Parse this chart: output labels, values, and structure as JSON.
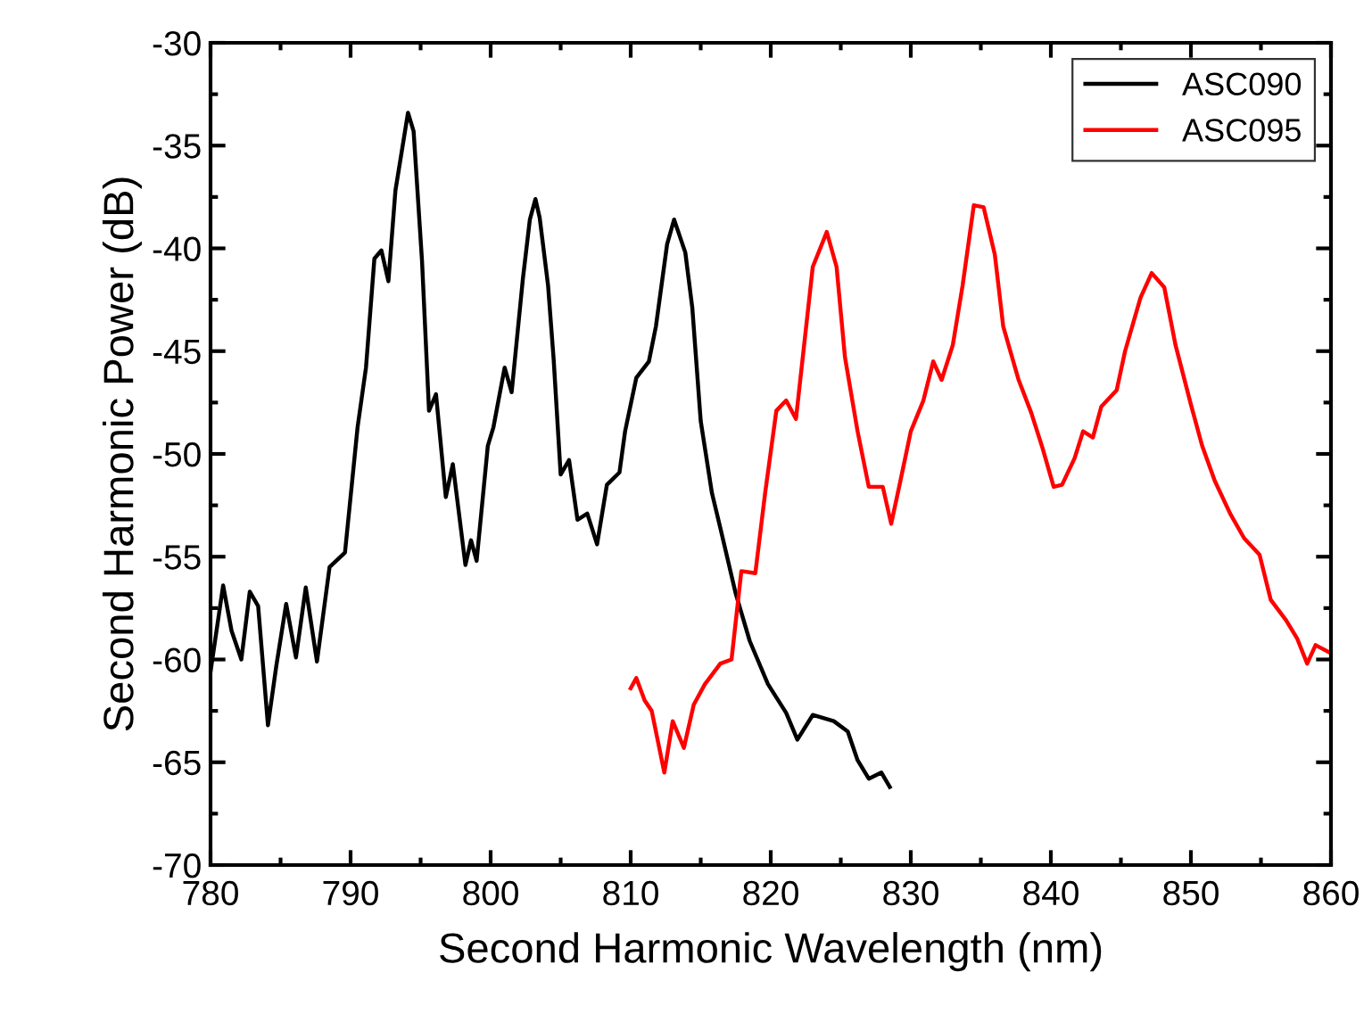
{
  "chart_data": {
    "type": "line",
    "xlabel": "Second Harmonic Wavelength (nm)",
    "ylabel": "Second Harmonic Power (dB)",
    "xlim": [
      780,
      860
    ],
    "xticks": [
      780,
      790,
      800,
      810,
      820,
      830,
      840,
      850,
      860
    ],
    "ylim": [
      -70,
      -30
    ],
    "yticks": [
      -70,
      -65,
      -60,
      -55,
      -50,
      -45,
      -40,
      -35,
      -30
    ],
    "grid": false,
    "legend": "top right",
    "marker": "none",
    "line_style": "solid",
    "series": [
      {
        "name": "ASC090",
        "color": "#000000",
        "x": [
          780,
          780.9,
          781.5,
          782.2,
          782.8,
          783.4,
          784.1,
          784.7,
          785.4,
          786.1,
          786.8,
          787.6,
          788.5,
          789.6,
          790.5,
          791.1,
          791.7,
          792.2,
          792.7,
          793.2,
          794.1,
          794.5,
          795.1,
          795.6,
          796.1,
          796.8,
          797.3,
          798.2,
          798.6,
          799.0,
          799.8,
          800.2,
          801.0,
          801.5,
          802.3,
          802.8,
          803.2,
          803.5,
          804.1,
          804.5,
          805.0,
          805.6,
          806.2,
          806.9,
          807.6,
          808.3,
          809.2,
          809.6,
          810.4,
          811.3,
          811.8,
          812.6,
          813.1,
          813.9,
          814.4,
          815.0,
          815.8,
          816.4,
          817.5,
          818.5,
          819.8,
          821.1,
          821.9,
          823.0,
          824.5,
          825.5,
          826.2,
          827.0,
          827.9,
          828.5
        ],
        "values": [
          -60.6,
          -56.4,
          -58.6,
          -60.0,
          -56.7,
          -57.4,
          -63.2,
          -60.3,
          -57.3,
          -59.9,
          -56.5,
          -60.1,
          -55.5,
          -54.8,
          -48.7,
          -45.8,
          -40.5,
          -40.1,
          -41.6,
          -37.2,
          -33.4,
          -34.3,
          -40.6,
          -47.9,
          -47.1,
          -52.1,
          -50.5,
          -55.4,
          -54.2,
          -55.2,
          -49.6,
          -48.7,
          -45.8,
          -47.0,
          -41.5,
          -38.6,
          -37.6,
          -38.5,
          -41.8,
          -45.4,
          -51.0,
          -50.3,
          -53.2,
          -52.9,
          -54.4,
          -51.5,
          -50.9,
          -48.9,
          -46.3,
          -45.5,
          -43.8,
          -39.8,
          -38.6,
          -40.2,
          -42.9,
          -48.4,
          -51.9,
          -53.6,
          -56.8,
          -59.1,
          -61.2,
          -62.6,
          -63.9,
          -62.7,
          -63.0,
          -63.5,
          -64.9,
          -65.8,
          -65.5,
          -66.2
        ]
      },
      {
        "name": "ASC095",
        "color": "#ff0000",
        "x": [
          810.0,
          810.4,
          811.0,
          811.5,
          812.4,
          813.0,
          813.8,
          814.5,
          815.3,
          816.4,
          817.2,
          817.9,
          818.9,
          819.6,
          820.4,
          821.1,
          821.8,
          823.0,
          824.0,
          824.7,
          825.3,
          826.2,
          827.0,
          828.0,
          828.6,
          829.2,
          830.0,
          830.9,
          831.6,
          832.2,
          833.0,
          833.7,
          834.5,
          835.2,
          836.0,
          836.6,
          837.7,
          838.6,
          839.4,
          840.2,
          840.8,
          841.7,
          842.3,
          843.0,
          843.6,
          844.7,
          845.3,
          846.4,
          847.2,
          848.1,
          848.9,
          850.0,
          850.8,
          851.7,
          852.8,
          853.8,
          854.9,
          855.7,
          856.8,
          857.6,
          858.3,
          858.9,
          860.0
        ],
        "values": [
          -61.4,
          -60.9,
          -62.0,
          -62.5,
          -65.5,
          -63.0,
          -64.3,
          -62.2,
          -61.2,
          -60.2,
          -60.0,
          -55.7,
          -55.8,
          -51.9,
          -47.9,
          -47.4,
          -48.3,
          -40.9,
          -39.2,
          -40.9,
          -45.3,
          -48.9,
          -51.6,
          -51.6,
          -53.4,
          -51.5,
          -48.9,
          -47.4,
          -45.5,
          -46.4,
          -44.7,
          -41.8,
          -37.9,
          -38.0,
          -40.3,
          -43.8,
          -46.4,
          -48.0,
          -49.7,
          -51.6,
          -51.5,
          -50.2,
          -48.9,
          -49.2,
          -47.7,
          -46.9,
          -45.0,
          -42.4,
          -41.2,
          -41.9,
          -44.7,
          -47.6,
          -49.6,
          -51.3,
          -52.9,
          -54.1,
          -54.9,
          -57.1,
          -58.1,
          -59.0,
          -60.2,
          -59.3,
          -59.7
        ]
      }
    ]
  }
}
